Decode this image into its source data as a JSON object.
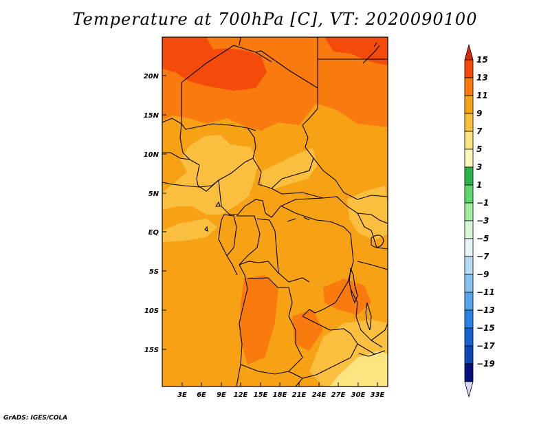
{
  "title": "Temperature at 700hPa [C], VT: 2020090100",
  "credit": "GrADS: IGES/COLA",
  "map": {
    "region": "Central Africa",
    "lat_labels": [
      "20N",
      "15N",
      "10N",
      "5N",
      "EQ",
      "5S",
      "10S",
      "15S"
    ],
    "lon_labels": [
      "3E",
      "6E",
      "9E",
      "12E",
      "15E",
      "18E",
      "21E",
      "24E",
      "27E",
      "30E",
      "33E"
    ]
  },
  "colorbar": {
    "labels": [
      "15",
      "13",
      "11",
      "9",
      "7",
      "5",
      "3",
      "1",
      "−1",
      "−3",
      "−5",
      "−7",
      "−9",
      "−11",
      "−13",
      "−15",
      "−17",
      "−19"
    ],
    "colors": [
      "#d62a0a",
      "#f44b0b",
      "#f97b10",
      "#f7a214",
      "#fbbf40",
      "#fde382",
      "#fffabb",
      "#2fb34c",
      "#5fd86c",
      "#a2eea2",
      "#d8f8d8",
      "#e8f6fb",
      "#b7dcf7",
      "#86c2f2",
      "#56a4ec",
      "#2c82e2",
      "#1663cf",
      "#0c46b3",
      "#06127a",
      "#d8d8f8"
    ]
  }
}
